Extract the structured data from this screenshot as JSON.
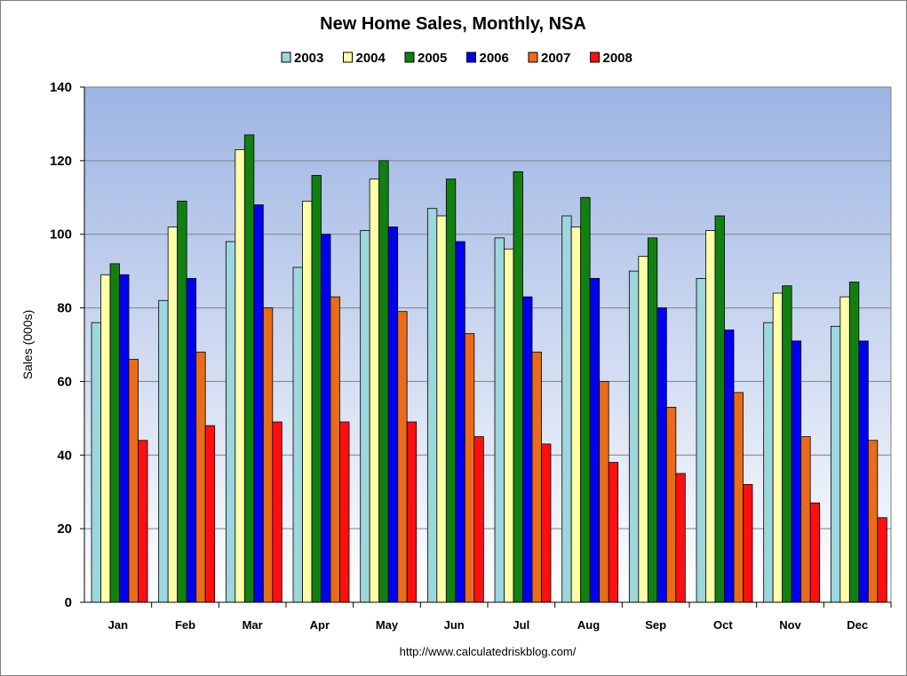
{
  "chart_data": {
    "type": "bar",
    "title": "New Home Sales, Monthly, NSA",
    "ylabel": "Sales (000s)",
    "xlabel": "",
    "ylim": [
      0,
      140
    ],
    "yticks": [
      0,
      20,
      40,
      60,
      80,
      100,
      120,
      140
    ],
    "grid": true,
    "legend_position": "top",
    "source_text": "http://www.calculatedriskblog.com/",
    "categories": [
      "Jan",
      "Feb",
      "Mar",
      "Apr",
      "May",
      "Jun",
      "Jul",
      "Aug",
      "Sep",
      "Oct",
      "Nov",
      "Dec"
    ],
    "series": [
      {
        "name": "2003",
        "color": "#9dd6dc",
        "values": [
          76,
          82,
          98,
          91,
          101,
          107,
          99,
          105,
          90,
          88,
          76,
          75
        ]
      },
      {
        "name": "2004",
        "color": "#ffffa8",
        "values": [
          89,
          102,
          123,
          109,
          115,
          105,
          96,
          102,
          94,
          101,
          84,
          83
        ]
      },
      {
        "name": "2005",
        "color": "#127f12",
        "values": [
          92,
          109,
          127,
          116,
          120,
          115,
          117,
          110,
          99,
          105,
          86,
          87
        ]
      },
      {
        "name": "2006",
        "color": "#0000ee",
        "values": [
          89,
          88,
          108,
          100,
          102,
          98,
          83,
          88,
          80,
          74,
          71,
          71
        ]
      },
      {
        "name": "2007",
        "color": "#e86c1a",
        "values": [
          66,
          68,
          80,
          83,
          79,
          73,
          68,
          60,
          53,
          57,
          45,
          44
        ]
      },
      {
        "name": "2008",
        "color": "#ff0f0f",
        "values": [
          44,
          48,
          49,
          49,
          49,
          45,
          43,
          38,
          35,
          32,
          27,
          23
        ]
      }
    ]
  },
  "colors": {
    "plot_bg_top": "#9db4e3",
    "plot_bg_bottom": "#ffffff",
    "gridline": "#808080",
    "bar_outline": "#000000"
  }
}
